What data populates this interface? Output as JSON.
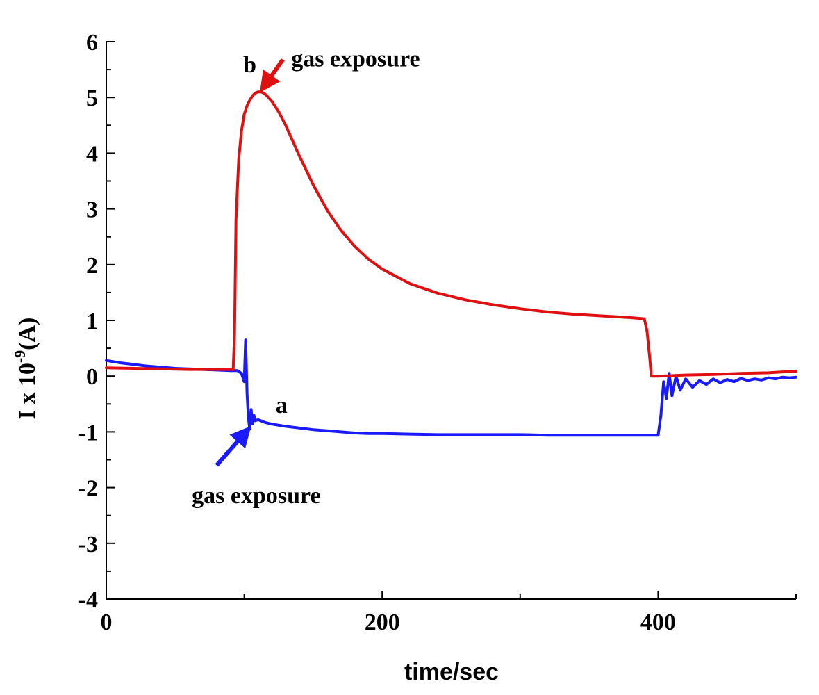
{
  "chart_data": {
    "type": "line",
    "title": "",
    "xlabel": "time/sec",
    "ylabel": {
      "prefix": "I x 10",
      "exponent": "-9",
      "suffix": "(A)"
    },
    "xlim": [
      0,
      500
    ],
    "ylim": [
      -4,
      6
    ],
    "x_ticks": [
      0,
      200,
      400
    ],
    "x_tick_labels": [
      "0",
      "200",
      "400"
    ],
    "y_ticks": [
      6,
      5,
      4,
      3,
      2,
      1,
      0,
      -1,
      -2,
      -3,
      -4
    ],
    "y_tick_labels": [
      "6",
      "5",
      "4",
      "3",
      "2",
      "1",
      "0",
      "-1",
      "-2",
      "-3",
      "-4"
    ],
    "grid": false,
    "series": [
      {
        "label": "a",
        "color": "#1a1aff",
        "x": [
          0,
          10,
          20,
          30,
          40,
          50,
          60,
          70,
          80,
          90,
          95,
          98,
          100,
          101,
          102,
          103,
          104,
          105,
          106,
          107,
          108,
          110,
          112,
          115,
          120,
          130,
          140,
          150,
          160,
          170,
          180,
          190,
          200,
          220,
          240,
          260,
          280,
          300,
          320,
          340,
          360,
          380,
          395,
          400,
          402,
          404,
          406,
          408,
          410,
          413,
          416,
          420,
          425,
          430,
          435,
          440,
          445,
          450,
          455,
          460,
          465,
          470,
          475,
          480,
          485,
          490,
          495,
          500
        ],
        "y": [
          0.28,
          0.24,
          0.21,
          0.18,
          0.16,
          0.14,
          0.13,
          0.12,
          0.11,
          0.1,
          0.1,
          0.05,
          -0.1,
          0.65,
          -0.3,
          -0.75,
          -0.95,
          -0.6,
          -0.85,
          -0.7,
          -0.8,
          -0.78,
          -0.8,
          -0.83,
          -0.86,
          -0.9,
          -0.93,
          -0.96,
          -0.98,
          -1.0,
          -1.02,
          -1.03,
          -1.03,
          -1.04,
          -1.05,
          -1.05,
          -1.05,
          -1.05,
          -1.06,
          -1.06,
          -1.06,
          -1.06,
          -1.06,
          -1.06,
          -0.7,
          -0.1,
          -0.4,
          0.05,
          -0.35,
          0.0,
          -0.25,
          -0.05,
          -0.2,
          -0.08,
          -0.15,
          -0.05,
          -0.12,
          -0.06,
          -0.1,
          -0.04,
          -0.08,
          -0.05,
          -0.07,
          -0.03,
          -0.05,
          -0.02,
          -0.03,
          -0.02
        ]
      },
      {
        "label": "b",
        "color": "#e01010",
        "x": [
          0,
          20,
          40,
          60,
          80,
          92,
          93,
          94,
          96,
          98,
          100,
          102,
          104,
          106,
          108,
          110,
          112,
          114,
          116,
          120,
          125,
          130,
          140,
          150,
          160,
          170,
          180,
          190,
          200,
          220,
          240,
          260,
          280,
          300,
          320,
          340,
          360,
          380,
          390,
          392,
          394,
          395,
          400,
          420,
          440,
          460,
          480,
          500
        ],
        "y": [
          0.15,
          0.14,
          0.13,
          0.12,
          0.12,
          0.12,
          0.8,
          2.8,
          3.9,
          4.4,
          4.7,
          4.85,
          4.95,
          5.03,
          5.08,
          5.1,
          5.1,
          5.08,
          5.04,
          4.93,
          4.74,
          4.5,
          3.95,
          3.43,
          2.98,
          2.62,
          2.33,
          2.1,
          1.92,
          1.66,
          1.49,
          1.37,
          1.28,
          1.21,
          1.15,
          1.11,
          1.08,
          1.05,
          1.03,
          0.8,
          0.3,
          0.0,
          0.0,
          0.02,
          0.03,
          0.05,
          0.06,
          0.09
        ]
      }
    ],
    "annotations": [
      {
        "text": "gas exposure",
        "target": [
          113,
          5.15
        ],
        "anchor": [
          128,
          5.68
        ],
        "color": "#e01010"
      },
      {
        "text": "b",
        "at": [
          104,
          5.45
        ]
      },
      {
        "text": "a",
        "at": [
          127,
          -0.66
        ]
      },
      {
        "text": "gas exposure",
        "target": [
          103,
          -0.95
        ],
        "anchor": [
          80,
          -1.6
        ],
        "label_at": [
          62,
          -2.28
        ],
        "color": "#1a1aff"
      }
    ]
  }
}
